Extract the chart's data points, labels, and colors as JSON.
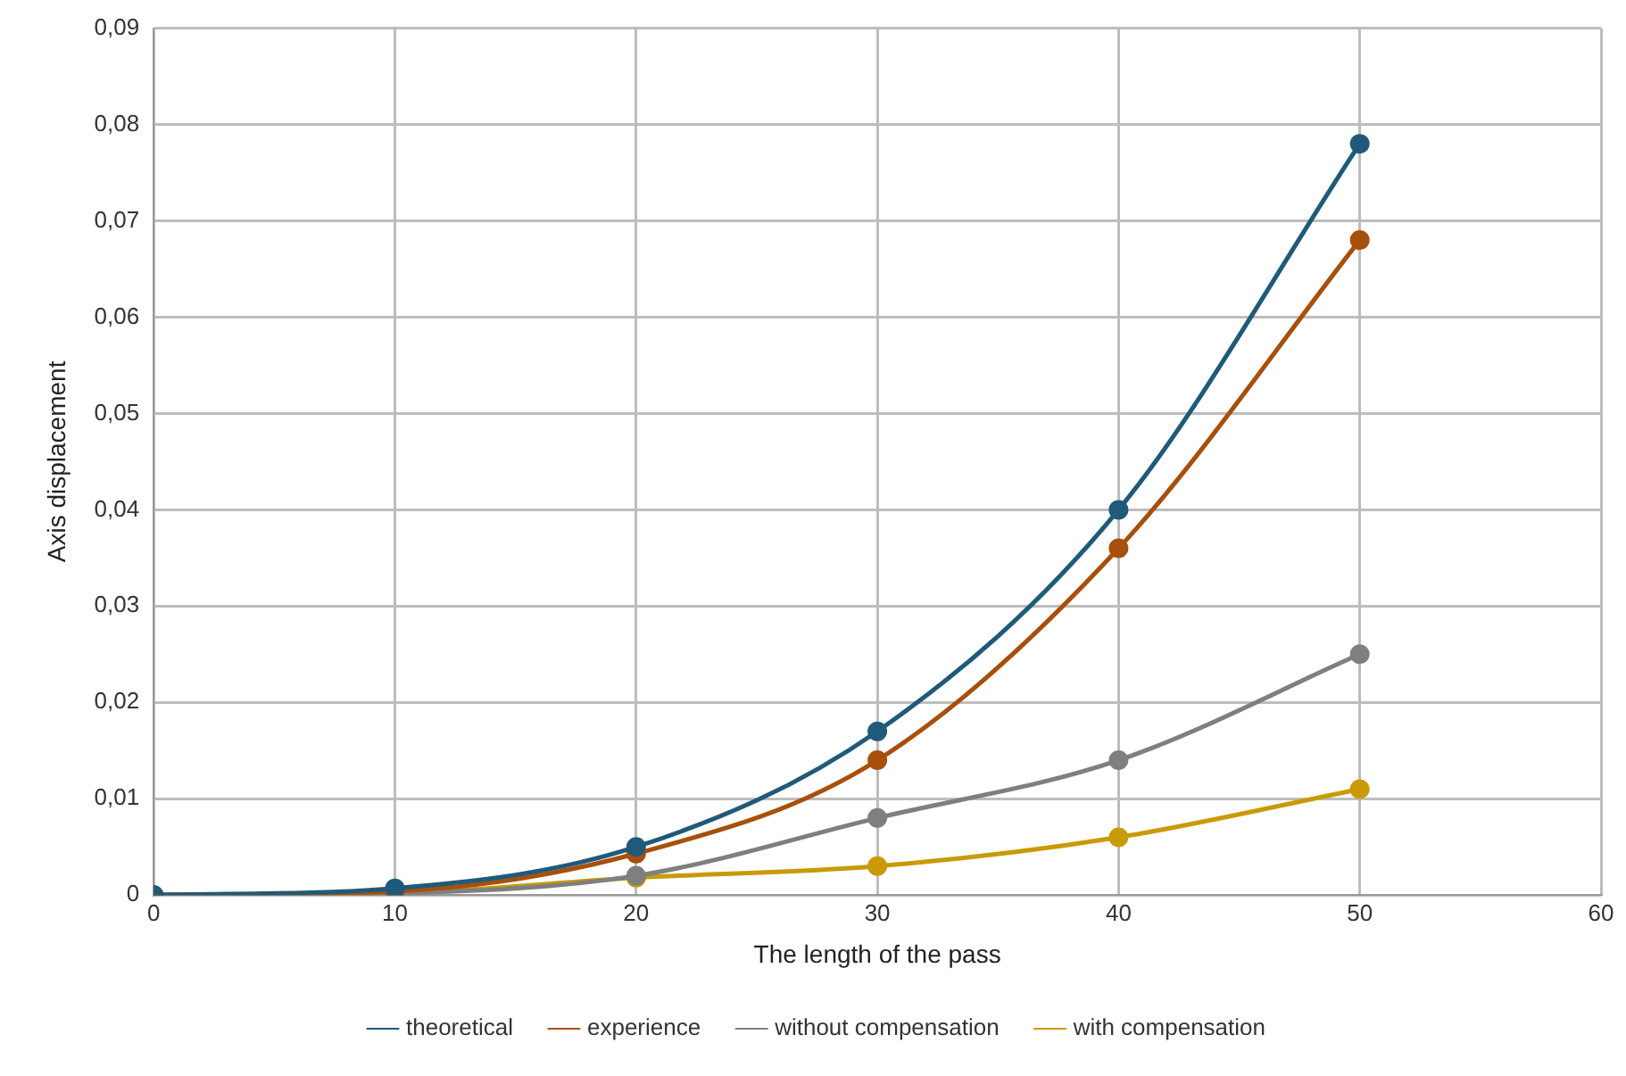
{
  "chart_data": {
    "type": "line",
    "xlabel": "The length of the pass",
    "ylabel": "Axis displacement",
    "x": [
      0,
      10,
      20,
      30,
      40,
      50
    ],
    "series": [
      {
        "name": "theoretical",
        "color": "#1f5a7a",
        "values": [
          0,
          0.0007,
          0.005,
          0.017,
          0.04,
          0.078
        ]
      },
      {
        "name": "experience",
        "color": "#a84f0c",
        "values": [
          0,
          0.0004,
          0.0043,
          0.014,
          0.036,
          0.068
        ]
      },
      {
        "name": "without compensation",
        "color": "#7f7f7f",
        "values": [
          0,
          0.0002,
          0.002,
          0.008,
          0.014,
          0.025
        ]
      },
      {
        "name": "with compensation",
        "color": "#c99a06",
        "values": [
          0,
          0.0002,
          0.0018,
          0.003,
          0.006,
          0.011
        ]
      }
    ],
    "xlim": [
      0,
      60
    ],
    "xticks": [
      0,
      10,
      20,
      30,
      40,
      50,
      60
    ],
    "ylim": [
      0,
      0.09
    ],
    "yticks": [
      {
        "value": 0,
        "label": "0"
      },
      {
        "value": 0.01,
        "label": "0,01"
      },
      {
        "value": 0.02,
        "label": "0,02"
      },
      {
        "value": 0.03,
        "label": "0,03"
      },
      {
        "value": 0.04,
        "label": "0,04"
      },
      {
        "value": 0.05,
        "label": "0,05"
      },
      {
        "value": 0.06,
        "label": "0,06"
      },
      {
        "value": 0.07,
        "label": "0,07"
      },
      {
        "value": 0.08,
        "label": "0,08"
      },
      {
        "value": 0.09,
        "label": "0,09"
      }
    ],
    "grid": true,
    "legend": "bottom",
    "marker": "circle",
    "line_style": "solid"
  }
}
